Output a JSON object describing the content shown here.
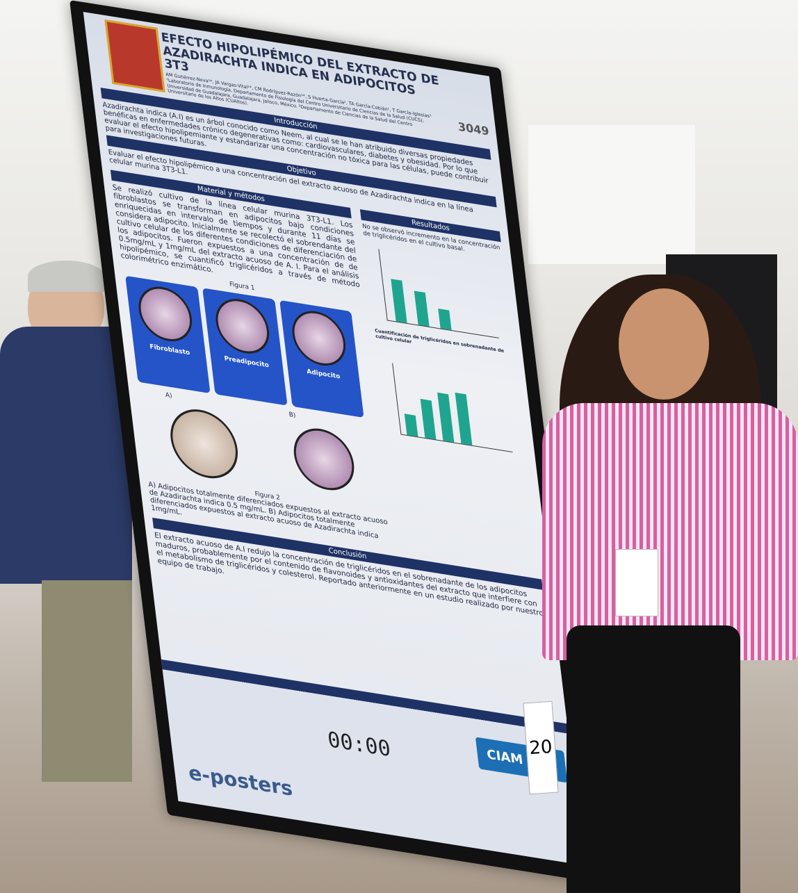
{
  "poster": {
    "title": "EFECTO HIPOLIPÉMICO DEL EXTRACTO DE AZADIRACHTA INDICA EN ADIPOCITOS 3T3",
    "code": "3049",
    "authors": "AM Gutiérrez-Neva¹*, JA Vargas-Vital¹*, CM Rodríguez-Razón¹*, S Huerta-García¹, TA García-Cobián¹, T García-Iglesias¹",
    "affiliation": "¹Laboratorio de Inmunología, Departamento de Fisiología del Centro Universitario de Ciencias de la Salud (CUCS), Universidad de Guadalajara, Guadalajara, Jalisco, México. ²Departamento de Ciencias de la Salud del Centro Universitario de los Altos (CUAltos).",
    "intro": {
      "heading": "Introducción",
      "text": "Azadirachta indica (A.I) es un árbol conocido como Neem, al cual se le han atribuido diversas propiedades benéficas en enfermedades crónico degenerativas como: cardiovasculares, diabetes y obesidad. Por lo que evaluar el efecto hipolipemiante y estandarizar una concentración no tóxica para las células, puede contribuir para investigaciones futuras."
    },
    "objective": {
      "heading": "Objetivo",
      "text": "Evaluar el efecto hipolipémico a una concentración del extracto acuoso de Azadirachta indica en la línea celular murina 3T3-L1."
    },
    "methods": {
      "heading": "Material y métodos",
      "text": "Se realizó cultivo de la línea celular murina 3T3-L1. Los fibroblastos se transforman en adipocitos bajo condiciones enriquecidas en intervalo de tiempos y durante 11 días se considera adipocito. Inicialmente se recolectó el sobrendante del cultivo celular de los diferentes condiciones de diferenciación de los adipocitos. Fueron expuestos a una concentración de de 0.5mg/mL y 1mg/mL del extracto acuoso de A. I. Para el análisis hipolipémico, se cuantificó triglicéridos a través de método colorimétrico enzimático."
    },
    "figure1": {
      "caption": "Figura 1",
      "stages": [
        "Fibroblasto",
        "Preadipocito",
        "Adipocito"
      ]
    },
    "figure2": {
      "caption": "Figura 2",
      "panels": [
        "A)",
        "B)"
      ],
      "text": "A) Adipocitos totalmente diferenciados expuestos al extracto acuoso de Azadirachta indica 0.5 mg/mL. B) Adipocitos totalmente diferenciados expuestos al extracto acuoso de Azadirachta indica 1mg/mL."
    },
    "results": {
      "heading": "Resultados",
      "text": "No se observó incremento en la concentración de triglicéridos en el cultivo basal.",
      "subheading": "Cuantificación de triglicéridos en sobrenadante de cultivo celular"
    },
    "conclusion": {
      "heading": "Conclusión",
      "text": "El extracto acuoso de A.I redujo la concentración de triglicéridos en el sobrenadante de los adipocitos maduros, probablemente por el contenido de flavonoides y antioxidantes del extracto que interfiere con el metabolismo de triglicéridos y colesterol. Reportado anteriormente en un estudio realizado por nuestro equipo de trabajo."
    },
    "timer": "00:00",
    "brand": "e-posters",
    "event": "CIAM XXII"
  },
  "stand": "20"
}
